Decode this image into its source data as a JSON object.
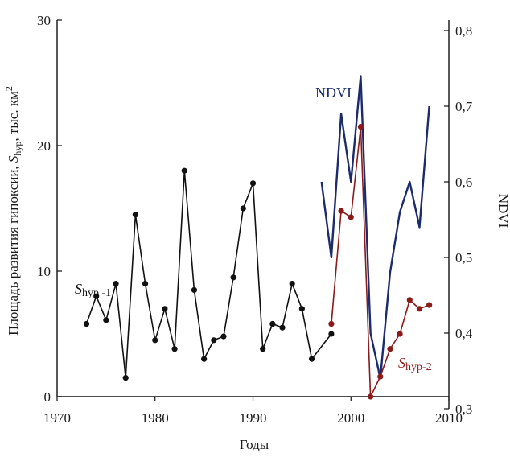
{
  "chart_data": {
    "type": "line",
    "x_axis": {
      "label": "Годы",
      "range": [
        1970,
        2010
      ],
      "ticks": [
        1970,
        1980,
        1990,
        2000,
        2010
      ],
      "tick_labels": [
        "1970",
        "1980",
        "1990",
        "2000",
        "2010"
      ]
    },
    "y_axis_left": {
      "label_parts": [
        "Площадь развития гипоксии, ",
        "S",
        "hyp",
        ", тыс. км",
        "2"
      ],
      "range": [
        0,
        30
      ],
      "ticks": [
        0,
        10,
        20,
        30
      ],
      "tick_labels": [
        "0",
        "10",
        "20",
        "30"
      ]
    },
    "y_axis_right": {
      "label": "NDVI",
      "range": [
        0.3,
        0.8
      ],
      "ticks": [
        0.3,
        0.4,
        0.5,
        0.6,
        0.7,
        0.8
      ],
      "tick_labels": [
        "0,3",
        "0,4",
        "0,5",
        "0,6",
        "0,7",
        "0,8"
      ]
    },
    "series": [
      {
        "label_main": "S",
        "label_sub": "hyp -1",
        "axis": "left",
        "color": "#111111",
        "markers": true,
        "x": [
          1973,
          1974,
          1975,
          1976,
          1977,
          1978,
          1979,
          1980,
          1981,
          1982,
          1983,
          1984,
          1985,
          1986,
          1987,
          1988,
          1989,
          1990,
          1991,
          1992,
          1993,
          1994,
          1995,
          1996,
          1998
        ],
        "y": [
          5.8,
          8.0,
          6.1,
          9.0,
          1.5,
          14.5,
          9.0,
          4.5,
          7.0,
          3.8,
          18.0,
          8.5,
          3.0,
          4.5,
          4.8,
          9.5,
          15.0,
          17.0,
          3.8,
          5.8,
          5.5,
          9.0,
          7.0,
          3.0,
          5.0
        ]
      },
      {
        "label_main": "S",
        "label_sub": "hyp-2",
        "axis": "left",
        "color": "#8b1a1a",
        "markers": true,
        "x": [
          1998,
          1999,
          2000,
          2001,
          2002,
          2003,
          2004,
          2005,
          2006,
          2007,
          2008
        ],
        "y": [
          5.8,
          14.8,
          14.3,
          21.5,
          0.0,
          1.6,
          3.8,
          5.0,
          7.7,
          7.0,
          7.3
        ]
      },
      {
        "label_main": "NDVI",
        "label_sub": "",
        "axis": "right",
        "color": "#1c2a6e",
        "markers": false,
        "x": [
          1997,
          1998,
          1999,
          2000,
          2001,
          2002,
          2003,
          2004,
          2005,
          2006,
          2007,
          2008
        ],
        "y": [
          0.6,
          0.5,
          0.69,
          0.6,
          0.74,
          0.4,
          0.34,
          0.48,
          0.56,
          0.6,
          0.54,
          0.7
        ]
      }
    ]
  }
}
